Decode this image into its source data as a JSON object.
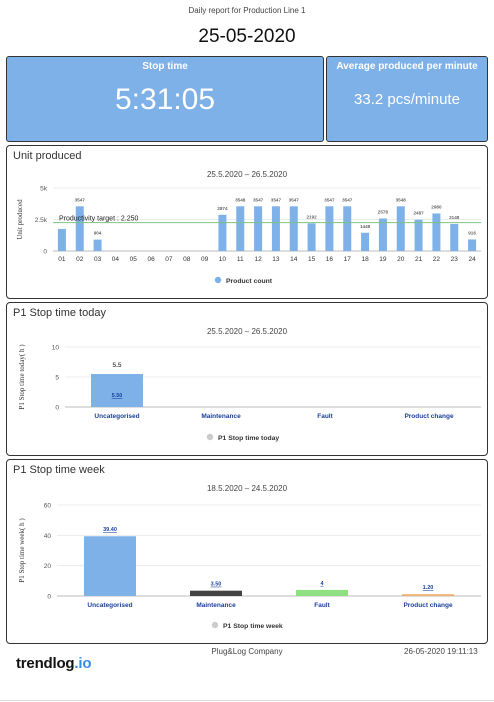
{
  "header": {
    "title": "Daily report for Production Line 1",
    "date": "25-05-2020"
  },
  "kpis": {
    "stop_time": {
      "label": "Stop time",
      "value": "5:31:05"
    },
    "avg_produced": {
      "label": "Average produced per minute",
      "value": "33.2 pcs/minute"
    }
  },
  "colors": {
    "accent": "#7db1e8",
    "target_line": "#7fc27f",
    "dark_bar": "#444444",
    "green_bar": "#8fe080",
    "orange_bar": "#f0b070",
    "link_label": "#1a3f9a"
  },
  "footer": {
    "company": "Plug&Log Company",
    "timestamp": "26-05-2020 19:11:13",
    "logo_main": "trendlog",
    "logo_suffix": ".io"
  },
  "chart_data": [
    {
      "type": "bar",
      "panel_title": "Unit produced",
      "title": "25.5.2020 – 26.5.2020",
      "ylabel": "Unit produced",
      "yticks": [
        "0",
        "2.5k",
        "5k"
      ],
      "ylim": [
        0,
        5000
      ],
      "categories": [
        "01",
        "02",
        "03",
        "04",
        "05",
        "06",
        "07",
        "08",
        "09",
        "10",
        "11",
        "12",
        "13",
        "14",
        "15",
        "16",
        "17",
        "18",
        "19",
        "20",
        "21",
        "22",
        "23",
        "24"
      ],
      "series": [
        {
          "name": "Product count",
          "values": [
            1750,
            3547,
            904,
            0,
            0,
            0,
            0,
            0,
            0,
            2874,
            3548,
            3547,
            3547,
            3547,
            2192,
            3547,
            3547,
            1448,
            2578,
            3548,
            2487,
            2980,
            2148,
            916
          ],
          "labels": [
            "",
            "3547",
            "904",
            "",
            "",
            "",
            "",
            "",
            "",
            "2874",
            "3548",
            "3547",
            "3547",
            "3547",
            "2192",
            "3547",
            "3547",
            "1448",
            "2578",
            "3548",
            "2487",
            "2980",
            "2148",
            "916"
          ]
        }
      ],
      "target": {
        "label": "Productivity target : 2.250",
        "value": 2250
      },
      "legend": "bottom"
    },
    {
      "type": "bar",
      "panel_title": "P1 Stop time today",
      "title": "25.5.2020 – 26.5.2020",
      "ylabel": "P1 Stop time today( h )",
      "yticks": [
        "0",
        "5",
        "10"
      ],
      "ylim": [
        0,
        10
      ],
      "categories": [
        "Uncategorised",
        "Maintenance",
        "Fault",
        "Product change"
      ],
      "series": [
        {
          "name": "P1 Stop time today",
          "values": [
            5.5,
            0,
            0,
            0
          ],
          "top_labels": [
            "5.5",
            "",
            "",
            ""
          ],
          "inner_labels": [
            "5.50",
            "",
            "",
            ""
          ]
        }
      ],
      "legend": "bottom"
    },
    {
      "type": "bar",
      "panel_title": "P1 Stop time week",
      "title": "18.5.2020 – 24.5.2020",
      "ylabel": "P1 Stop time week( h )",
      "yticks": [
        "0",
        "20",
        "40",
        "60"
      ],
      "ylim": [
        0,
        60
      ],
      "categories": [
        "Uncategorised",
        "Maintenance",
        "Fault",
        "Product change"
      ],
      "series": [
        {
          "name": "P1 Stop time week",
          "values": [
            39.4,
            3.5,
            4,
            1.2
          ],
          "labels": [
            "39.40",
            "3.50",
            "4",
            "1.20"
          ],
          "colors": [
            "#7db1e8",
            "#444444",
            "#8fe080",
            "#f0b070"
          ]
        }
      ],
      "legend": "bottom"
    }
  ]
}
